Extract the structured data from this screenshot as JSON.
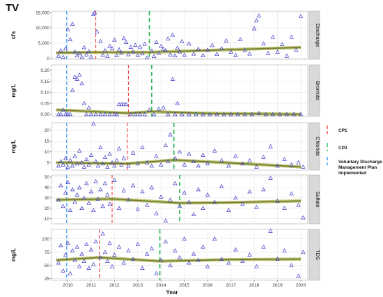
{
  "figure": {
    "title": "TV",
    "x_axis_title": "Year"
  },
  "legend": {
    "items": [
      {
        "label": "CP1",
        "color": "#ee3b3b"
      },
      {
        "label": "CP2",
        "color": "#1fb84a"
      },
      {
        "label": "Voluntary Discharge",
        "color": "#3399ff"
      },
      {
        "label": "Management Plan",
        "color": "#3399ff"
      },
      {
        "label": "Implemented",
        "color": "#3399ff"
      }
    ]
  },
  "colors": {
    "panel_bg": "#ffffff",
    "grid": "#e4e4e4",
    "strip_bg": "#d9d9d9",
    "points": "#3a3ac8",
    "trend_fill": "#8a8a00",
    "trend_green": "#3c9a2c",
    "trend_red": "#e24a3a",
    "cp1": "#ee3b3b",
    "cp2": "#1fb84a",
    "vdmp": "#3399ff"
  },
  "chart_data": [
    {
      "type": "scatter",
      "strip_label": "Discharge",
      "ylabel": "cfs",
      "yticks": [
        0,
        5000,
        10000,
        15000
      ],
      "yticklabels": [
        "0",
        "5,000",
        "10,000",
        "15,000"
      ],
      "ylim": [
        -300,
        15500
      ],
      "xlim": [
        2009.3,
        2020.3
      ],
      "xticks": [
        2010,
        2011,
        2012,
        2013,
        2014,
        2015,
        2016,
        2017,
        2018,
        2019,
        2020
      ],
      "show_xticklabels": false,
      "vlines": {
        "vdmp": 2009.95,
        "cp1": 2011.2,
        "cp2": 2013.5
      },
      "trend": {
        "x": [
          2009.5,
          2011.2,
          2013.5,
          2016,
          2020
        ],
        "y": [
          1800,
          2000,
          2000,
          2600,
          3600
        ]
      },
      "points": {
        "x": [
          2009.6,
          2009.7,
          2009.8,
          2009.9,
          2010.0,
          2010.1,
          2010.2,
          2010.3,
          2010.4,
          2010.5,
          2010.6,
          2010.7,
          2010.8,
          2010.9,
          2011.0,
          2011.1,
          2011.15,
          2011.25,
          2011.4,
          2011.5,
          2011.6,
          2011.7,
          2011.8,
          2011.9,
          2012.0,
          2012.1,
          2012.2,
          2012.3,
          2012.4,
          2012.5,
          2012.6,
          2012.7,
          2012.8,
          2012.9,
          2013.0,
          2013.1,
          2013.2,
          2013.3,
          2013.4,
          2013.6,
          2013.7,
          2013.8,
          2013.9,
          2014.0,
          2014.1,
          2014.2,
          2014.3,
          2014.4,
          2014.5,
          2014.6,
          2014.7,
          2014.8,
          2014.9,
          2015.0,
          2015.2,
          2015.4,
          2015.6,
          2015.8,
          2016.0,
          2016.2,
          2016.4,
          2016.6,
          2016.8,
          2017.0,
          2017.2,
          2017.4,
          2017.6,
          2017.8,
          2018.0,
          2018.1,
          2018.2,
          2018.4,
          2018.6,
          2018.8,
          2019.0,
          2019.2,
          2019.4,
          2019.6,
          2019.8,
          2020.0
        ],
        "y": [
          800,
          2600,
          400,
          3200,
          9500,
          6200,
          11300,
          2200,
          900,
          1600,
          400,
          3600,
          1200,
          2300,
          500,
          14500,
          15000,
          8800,
          5600,
          1100,
          2600,
          700,
          4000,
          3200,
          6100,
          1000,
          2900,
          1800,
          6600,
          5300,
          1300,
          3700,
          2200,
          4400,
          1000,
          3800,
          1600,
          4700,
          300,
          2500,
          700,
          5300,
          1700,
          4000,
          3100,
          2600,
          6500,
          1200,
          7700,
          900,
          3400,
          2200,
          5600,
          1100,
          4800,
          1500,
          3100,
          1000,
          2800,
          4300,
          1400,
          3300,
          5800,
          2100,
          1000,
          6200,
          2700,
          1500,
          9800,
          12400,
          14000,
          4800,
          1700,
          7000,
          2100,
          4600,
          800,
          7000,
          2800,
          13800
        ]
      }
    },
    {
      "type": "scatter",
      "strip_label": "Bromide",
      "ylabel": "mg/L",
      "yticks": [
        0.0,
        0.05,
        0.1,
        0.15,
        0.2
      ],
      "yticklabels": [
        "0.00",
        "0.05",
        "0.10",
        "0.15",
        "0.20"
      ],
      "ylim": [
        -0.01,
        0.225
      ],
      "xlim": [
        2009.3,
        2020.3
      ],
      "xticks": [
        2010,
        2011,
        2012,
        2013,
        2014,
        2015,
        2016,
        2017,
        2018,
        2019,
        2020
      ],
      "show_xticklabels": false,
      "vlines": {
        "vdmp": 2009.95,
        "cp1": 2012.6,
        "cp2": 2013.6
      },
      "trend": {
        "x": [
          2009.5,
          2012.6,
          2013.6,
          2016,
          2020
        ],
        "y": [
          0.02,
          0.005,
          0.012,
          0.004,
          0.0
        ]
      },
      "points": {
        "x": [
          2009.6,
          2009.7,
          2009.8,
          2009.9,
          2010.0,
          2010.1,
          2010.2,
          2010.3,
          2010.4,
          2010.5,
          2010.6,
          2010.7,
          2010.8,
          2010.9,
          2011.0,
          2011.2,
          2011.4,
          2011.6,
          2011.8,
          2012.0,
          2012.1,
          2012.2,
          2012.3,
          2012.4,
          2012.5,
          2012.7,
          2012.9,
          2013.1,
          2013.3,
          2013.5,
          2013.7,
          2013.9,
          2014.1,
          2014.3,
          2014.5,
          2014.6,
          2014.7,
          2014.9,
          2015.2,
          2015.5,
          2015.8,
          2016.1,
          2016.4,
          2016.7,
          2017.0,
          2017.3,
          2017.6,
          2017.9,
          2018.2,
          2018.5,
          2018.8,
          2019.1,
          2019.4,
          2019.7,
          2020.0
        ],
        "y": [
          0.0,
          0.0,
          0.02,
          0.0,
          0.0,
          0.0,
          0.11,
          0.17,
          0.16,
          0.18,
          0.14,
          0.05,
          0.0,
          0.03,
          0.0,
          0.0,
          0.0,
          0.0,
          0.0,
          0.0,
          0.0,
          0.045,
          0.045,
          0.045,
          0.045,
          0.0,
          0.0,
          0.0,
          0.0,
          0.02,
          0.0,
          0.025,
          0.03,
          0.0,
          0.16,
          0.0,
          0.05,
          0.0,
          0.0,
          0.0,
          0.0,
          0.0,
          0.0,
          0.0,
          0.0,
          0.0,
          0.0,
          0.0,
          0.005,
          0.0,
          0.0,
          0.0,
          0.0,
          0.0,
          0.0
        ]
      }
    },
    {
      "type": "scatter",
      "strip_label": "Chloride",
      "ylabel": "mg/L",
      "yticks": [
        5,
        10,
        15,
        20
      ],
      "yticklabels": [
        "5",
        "10",
        "15",
        "20"
      ],
      "ylim": [
        1.5,
        23.5
      ],
      "xlim": [
        2009.3,
        2020.3
      ],
      "xticks": [
        2010,
        2011,
        2012,
        2013,
        2014,
        2015,
        2016,
        2017,
        2018,
        2019,
        2020
      ],
      "show_xticklabels": false,
      "vlines": {
        "vdmp": 2009.95,
        "cp1": 2012.55,
        "cp2": 2014.55
      },
      "trend": {
        "x": [
          2009.5,
          2012.55,
          2014.55,
          2017,
          2020
        ],
        "y": [
          5.0,
          4.5,
          6.2,
          4.8,
          3.0
        ]
      },
      "points": {
        "x": [
          2009.6,
          2009.7,
          2009.8,
          2009.9,
          2010.0,
          2010.1,
          2010.2,
          2010.3,
          2010.4,
          2010.5,
          2010.6,
          2010.7,
          2010.8,
          2010.9,
          2011.0,
          2011.1,
          2011.2,
          2011.3,
          2011.4,
          2011.5,
          2011.6,
          2011.7,
          2011.8,
          2011.9,
          2012.0,
          2012.1,
          2012.2,
          2012.3,
          2012.4,
          2012.6,
          2012.8,
          2013.0,
          2013.2,
          2013.4,
          2013.6,
          2013.8,
          2014.0,
          2014.2,
          2014.3,
          2014.4,
          2014.6,
          2014.8,
          2015.0,
          2015.2,
          2015.4,
          2015.6,
          2015.8,
          2016.0,
          2016.3,
          2016.6,
          2016.9,
          2017.2,
          2017.5,
          2017.8,
          2018.1,
          2018.4,
          2018.7,
          2019.0,
          2019.3,
          2019.6,
          2019.9,
          2020.1
        ],
        "y": [
          3.5,
          5.5,
          4.0,
          7.0,
          3.0,
          6.0,
          3.5,
          8.0,
          4.5,
          10.5,
          5.0,
          3.0,
          6.5,
          4.0,
          8.5,
          23.0,
          5.5,
          3.5,
          12.0,
          4.5,
          7.5,
          3.0,
          9.0,
          5.0,
          3.5,
          6.0,
          11.5,
          4.0,
          7.0,
          3.5,
          9.5,
          4.5,
          12.0,
          5.0,
          3.5,
          8.0,
          4.0,
          13.0,
          5.5,
          18.0,
          7.0,
          10.0,
          4.0,
          9.0,
          5.5,
          3.5,
          8.5,
          4.5,
          10.5,
          6.0,
          3.5,
          8.0,
          4.5,
          6.0,
          3.0,
          7.5,
          12.5,
          3.5,
          6.5,
          4.0,
          5.0,
          3.0
        ]
      }
    },
    {
      "type": "scatter",
      "strip_label": "Sulfate",
      "ylabel": "",
      "yticks": [
        10,
        20,
        30,
        40,
        50
      ],
      "yticklabels": [
        "10",
        "20",
        "30",
        "40",
        "50"
      ],
      "ylim": [
        5,
        52
      ],
      "xlim": [
        2009.3,
        2020.3
      ],
      "xticks": [
        2010,
        2011,
        2012,
        2013,
        2014,
        2015,
        2016,
        2017,
        2018,
        2019,
        2020
      ],
      "show_xticklabels": false,
      "vlines": {
        "vdmp": 2009.95,
        "cp1": 2011.9,
        "cp2": 2014.8
      },
      "trend": {
        "x": [
          2009.5,
          2011.9,
          2014.8,
          2017,
          2020
        ],
        "y": [
          28,
          29,
          25,
          25.5,
          27
        ]
      },
      "points": {
        "x": [
          2009.6,
          2009.7,
          2009.8,
          2009.9,
          2010.0,
          2010.1,
          2010.2,
          2010.3,
          2010.4,
          2010.5,
          2010.6,
          2010.7,
          2010.8,
          2010.9,
          2011.0,
          2011.1,
          2011.2,
          2011.3,
          2011.4,
          2011.5,
          2011.6,
          2011.7,
          2011.8,
          2012.0,
          2012.2,
          2012.4,
          2012.6,
          2012.8,
          2013.0,
          2013.2,
          2013.4,
          2013.6,
          2013.8,
          2014.0,
          2014.2,
          2014.4,
          2014.6,
          2014.8,
          2015.0,
          2015.2,
          2015.4,
          2015.6,
          2015.8,
          2016.0,
          2016.3,
          2016.6,
          2016.9,
          2017.2,
          2017.5,
          2017.8,
          2018.1,
          2018.4,
          2018.7,
          2019.0,
          2019.3,
          2019.6,
          2019.9,
          2020.1
        ],
        "y": [
          28,
          42,
          22,
          35,
          45,
          18,
          38,
          26,
          33,
          40,
          20,
          30,
          44,
          25,
          36,
          18,
          46,
          29,
          38,
          22,
          44,
          33,
          24,
          47,
          20,
          37,
          28,
          42,
          19,
          36,
          23,
          40,
          15,
          31,
          8,
          28,
          44,
          22,
          35,
          26,
          14,
          38,
          20,
          33,
          26,
          41,
          18,
          30,
          24,
          36,
          21,
          38,
          49,
          27,
          20,
          34,
          23,
          11
        ]
      }
    },
    {
      "type": "scatter",
      "strip_label": "TDS",
      "ylabel": "mg/L",
      "yticks": [
        25,
        50,
        75,
        100
      ],
      "yticklabels": [
        "25",
        "50",
        "75",
        "100"
      ],
      "ylim": [
        22,
        118
      ],
      "xlim": [
        2009.3,
        2020.3
      ],
      "xticks": [
        2010,
        2011,
        2012,
        2013,
        2014,
        2015,
        2016,
        2017,
        2018,
        2019,
        2020
      ],
      "xticklabels": [
        "2010",
        "2011",
        "2012",
        "2013",
        "2014",
        "2015",
        "2016",
        "2017",
        "2018",
        "2019",
        "2020"
      ],
      "show_xticklabels": true,
      "vlines": {
        "vdmp": 2009.95,
        "cp1": 2011.35,
        "cp2": 2013.95
      },
      "trend": {
        "x": [
          2009.5,
          2011.35,
          2013.95,
          2017,
          2020
        ],
        "y": [
          60,
          65,
          58,
          61,
          62
        ]
      },
      "points": {
        "x": [
          2009.6,
          2009.7,
          2009.8,
          2009.9,
          2010.0,
          2010.1,
          2010.2,
          2010.3,
          2010.4,
          2010.5,
          2010.6,
          2010.7,
          2010.8,
          2010.9,
          2011.0,
          2011.1,
          2011.2,
          2011.4,
          2011.5,
          2011.6,
          2011.7,
          2011.8,
          2011.9,
          2012.0,
          2012.2,
          2012.4,
          2012.6,
          2012.8,
          2013.0,
          2013.2,
          2013.4,
          2013.6,
          2013.8,
          2014.0,
          2014.2,
          2014.4,
          2014.6,
          2014.8,
          2015.0,
          2015.2,
          2015.4,
          2015.6,
          2015.8,
          2016.0,
          2016.3,
          2016.6,
          2016.9,
          2017.2,
          2017.5,
          2017.8,
          2018.1,
          2018.4,
          2018.7,
          2019.0,
          2019.3,
          2019.6,
          2019.9,
          2020.1
        ],
        "y": [
          55,
          88,
          40,
          70,
          92,
          35,
          78,
          60,
          85,
          48,
          72,
          58,
          90,
          45,
          80,
          52,
          95,
          65,
          110,
          75,
          58,
          92,
          48,
          70,
          85,
          55,
          78,
          62,
          90,
          45,
          72,
          82,
          35,
          60,
          95,
          50,
          78,
          65,
          100,
          55,
          72,
          60,
          85,
          48,
          100,
          62,
          55,
          80,
          58,
          70,
          48,
          85,
          115,
          62,
          78,
          50,
          30,
          75
        ]
      }
    }
  ]
}
